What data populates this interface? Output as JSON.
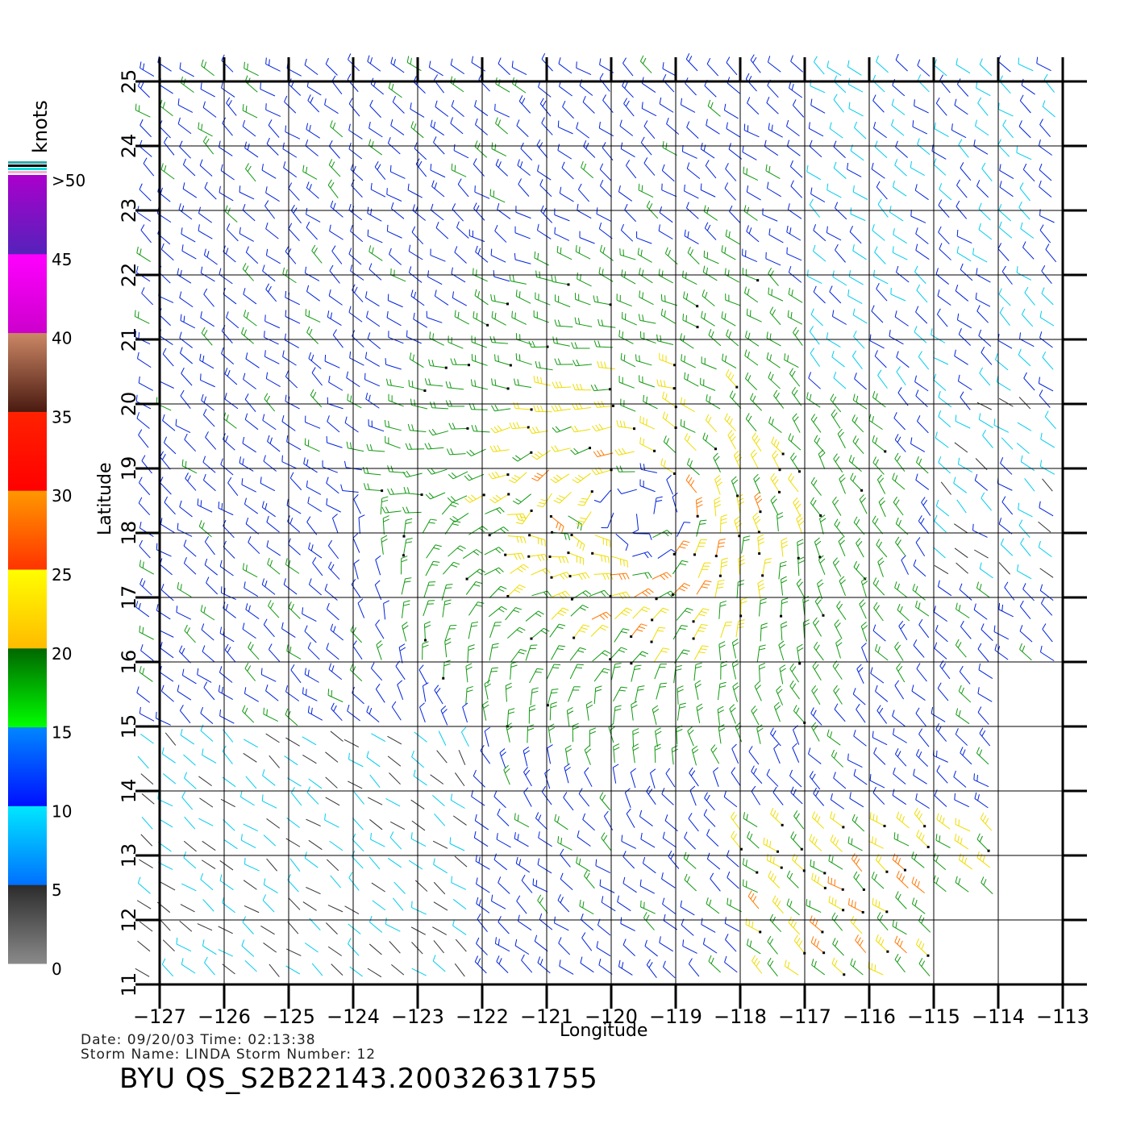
{
  "footer": {
    "date_line": "Date: 09/20/03   Time: 02:13:38",
    "storm_line": "Storm  Name: LINDA   Storm  Number: 12",
    "product_id": "BYU  QS_S2B22143.20032631755"
  },
  "axes": {
    "xlabel": "Longitude",
    "ylabel": "Latitude",
    "x_ticks": [
      "-127",
      "-126",
      "-125",
      "-124",
      "-123",
      "-122",
      "-121",
      "-120",
      "-119",
      "-118",
      "-117",
      "-116",
      "-115",
      "-114",
      "-113"
    ],
    "y_ticks": [
      "11",
      "12",
      "13",
      "14",
      "15",
      "16",
      "17",
      "18",
      "19",
      "20",
      "21",
      "22",
      "23",
      "24",
      "25"
    ],
    "xlim": [
      -127,
      -113
    ],
    "ylim": [
      11,
      25
    ]
  },
  "colorbar": {
    "unit": "knots",
    "labels": [
      ">50",
      "45",
      "40",
      "35",
      "30",
      "25",
      "20",
      "15",
      "10",
      "5",
      "0"
    ],
    "bands": [
      {
        "from": 0,
        "to": 5,
        "color_top": "#2b2b2b",
        "color_bottom": "#8a8a8a"
      },
      {
        "from": 5,
        "to": 10,
        "color_top": "#00e8ff",
        "color_bottom": "#0070ff"
      },
      {
        "from": 10,
        "to": 15,
        "color_top": "#0088ff",
        "color_bottom": "#0010ff"
      },
      {
        "from": 15,
        "to": 20,
        "color_top": "#006600",
        "color_bottom": "#00ff00"
      },
      {
        "from": 20,
        "to": 25,
        "color_top": "#ffff00",
        "color_bottom": "#ffbb00"
      },
      {
        "from": 25,
        "to": 30,
        "color_top": "#ff9900",
        "color_bottom": "#ff3300"
      },
      {
        "from": 30,
        "to": 35,
        "color_top": "#ff2200",
        "color_bottom": "#ff0000"
      },
      {
        "from": 35,
        "to": 40,
        "color_top": "#cc8866",
        "color_bottom": "#4a1a10"
      },
      {
        "from": 40,
        "to": 45,
        "color_top": "#ff00ff",
        "color_bottom": "#cc00cc"
      },
      {
        "from": 45,
        "to": 50,
        "color_top": "#aa00cc",
        "color_bottom": "#5522bb"
      }
    ]
  },
  "wind_colors": {
    "calm": "#333333",
    "light": "#00ccee",
    "moderate": "#0022dd",
    "fresh": "#119911",
    "strong": "#eedd00",
    "gale": "#ff7700",
    "storm": "#cc2200"
  },
  "storm_center": {
    "lon": -119.5,
    "lat": 18.3
  },
  "swath": {
    "lon_min": -127,
    "lon_max": -113,
    "lat_min": 11,
    "lat_max": 25
  }
}
